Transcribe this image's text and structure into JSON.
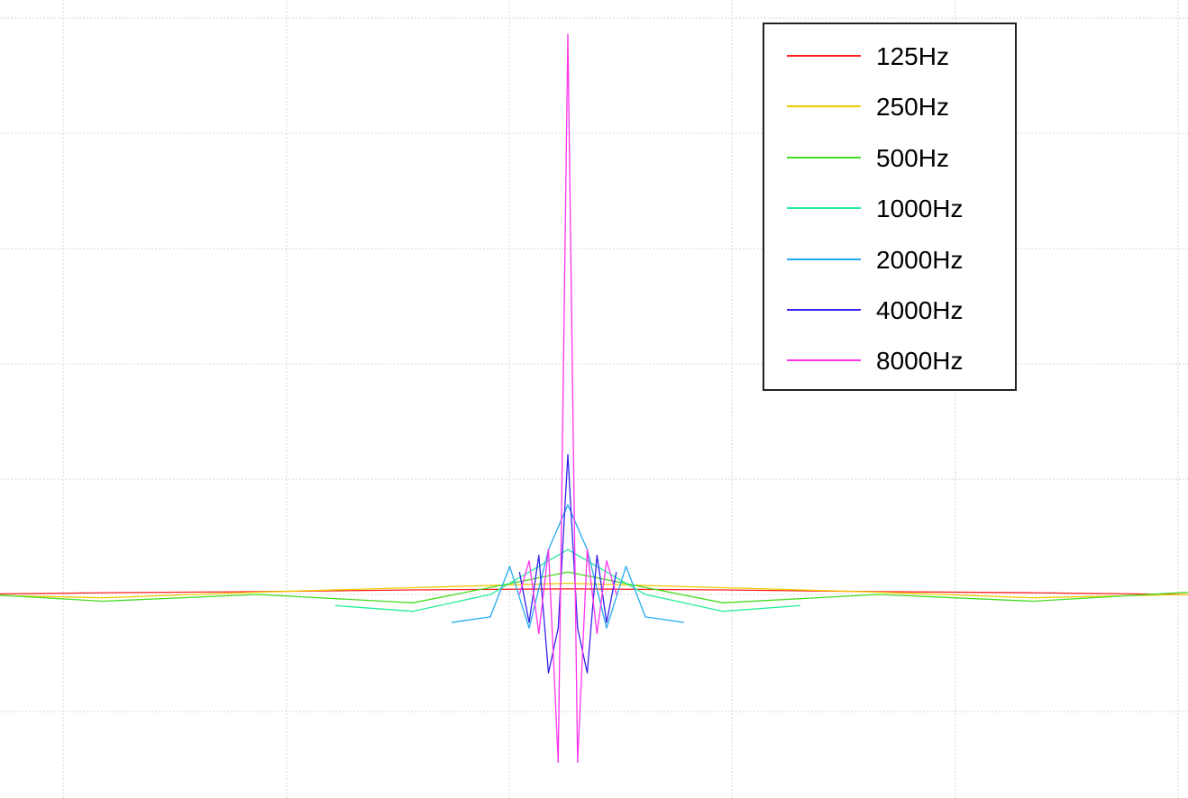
{
  "chart_data": {
    "type": "line",
    "title": "",
    "xlabel": "",
    "ylabel": "",
    "xlim": [
      -64,
      64
    ],
    "ylim": [
      -0.3,
      1.0
    ],
    "grid": true,
    "legend_position": "top-right",
    "series": [
      {
        "name": "125Hz",
        "color": "#ff2222",
        "x": [
          -64,
          -48,
          -32,
          -16,
          0,
          16,
          32,
          48,
          64
        ],
        "y": [
          0.0,
          0.003,
          0.005,
          0.008,
          0.01,
          0.008,
          0.005,
          0.003,
          0.0
        ]
      },
      {
        "name": "250Hz",
        "color": "#f0c800",
        "x": [
          -64,
          -48,
          -32,
          -16,
          0,
          16,
          32,
          48,
          64
        ],
        "y": [
          0.0,
          -0.006,
          0.004,
          0.012,
          0.02,
          0.012,
          0.004,
          -0.006,
          0.0
        ]
      },
      {
        "name": "500Hz",
        "color": "#44dd22",
        "x": [
          -64,
          -48,
          -32,
          -16,
          0,
          16,
          32,
          48,
          64
        ],
        "y": [
          0.004,
          -0.012,
          0.0,
          -0.015,
          0.04,
          -0.015,
          0.0,
          -0.012,
          0.004
        ]
      },
      {
        "name": "1000Hz",
        "color": "#22ee99",
        "x": [
          -24,
          -16,
          -8,
          -4,
          0,
          4,
          8,
          16,
          24
        ],
        "y": [
          -0.02,
          -0.03,
          0.0,
          0.04,
          0.08,
          0.04,
          0.0,
          -0.03,
          -0.02
        ]
      },
      {
        "name": "2000Hz",
        "color": "#22aaee",
        "x": [
          -12,
          -8,
          -6,
          -4,
          -2,
          0,
          2,
          4,
          6,
          8,
          12
        ],
        "y": [
          -0.05,
          -0.04,
          0.05,
          -0.06,
          0.08,
          0.16,
          0.08,
          -0.06,
          0.05,
          -0.04,
          -0.05
        ]
      },
      {
        "name": "4000Hz",
        "color": "#3322ee",
        "x": [
          -5,
          -4,
          -3,
          -2,
          -1,
          0,
          1,
          2,
          3,
          4,
          5
        ],
        "y": [
          0.04,
          -0.05,
          0.07,
          -0.14,
          -0.06,
          0.25,
          -0.06,
          -0.14,
          0.07,
          -0.05,
          0.04
        ]
      },
      {
        "name": "8000Hz",
        "color": "#ff33ee",
        "x": [
          -5,
          -4,
          -3,
          -2,
          -1,
          0,
          1,
          2,
          3,
          4,
          5
        ],
        "y": [
          0.0,
          0.06,
          -0.07,
          0.08,
          -0.3,
          1.0,
          -0.3,
          0.08,
          -0.07,
          0.06,
          0.0
        ]
      }
    ]
  }
}
